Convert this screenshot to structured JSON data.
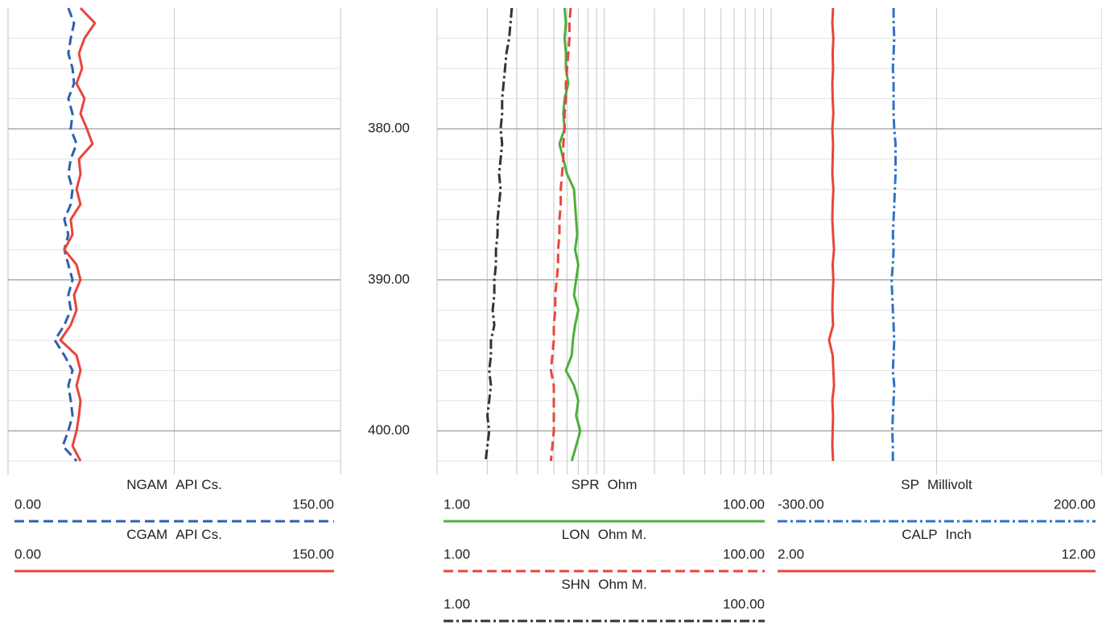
{
  "chart_data": [
    {
      "type": "line",
      "xscale": "linear",
      "xlim": [
        0,
        150
      ],
      "xgrid": [
        0,
        75,
        150
      ],
      "ylim": [
        372,
        402.9
      ],
      "inverted": true,
      "yticks": [
        {
          "value": 380,
          "label": "380.00"
        },
        {
          "value": 390,
          "label": "390.00"
        },
        {
          "value": 400,
          "label": "400.00"
        }
      ],
      "yminor": [
        374,
        376,
        378,
        382,
        384,
        386,
        388,
        392,
        394,
        396,
        398,
        402
      ],
      "y": [
        372,
        373,
        374,
        375,
        376,
        377,
        378,
        379,
        380,
        381,
        382,
        383,
        384,
        385,
        386,
        387,
        388,
        389,
        390,
        391,
        392,
        393,
        394,
        395,
        396,
        397,
        398,
        399,
        400,
        401,
        402
      ],
      "series": [
        {
          "name": "NGAM",
          "unit": "API Cs.",
          "color": "#2f5fb0",
          "style": "dashed",
          "xlim": [
            0,
            150
          ],
          "xticks": [
            {
              "value": 0,
              "label": "0.00"
            },
            {
              "value": 150,
              "label": "150.00"
            }
          ],
          "values": [
            27.2,
            29.8,
            28.3,
            27.2,
            29.1,
            29.8,
            27.2,
            29.1,
            28.3,
            30.9,
            28.3,
            27.2,
            29.1,
            28.3,
            25.4,
            27.2,
            25.4,
            27.2,
            29.1,
            27.2,
            28.3,
            25.4,
            21.1,
            25.4,
            29.1,
            27.2,
            28.3,
            29.1,
            27.2,
            24.7,
            30.9
          ]
        },
        {
          "name": "CGAM",
          "unit": "API Cs.",
          "color": "#e8453c",
          "style": "solid",
          "xlim": [
            0,
            150
          ],
          "xticks": [
            {
              "value": 0,
              "label": "0.00"
            },
            {
              "value": 150,
              "label": "150.00"
            }
          ],
          "values": [
            32.7,
            39.2,
            34.5,
            32.0,
            33.4,
            30.9,
            34.5,
            32.7,
            35.6,
            38.1,
            32.0,
            32.7,
            30.9,
            32.7,
            28.3,
            29.1,
            25.4,
            30.9,
            32.7,
            29.8,
            30.9,
            28.3,
            23.6,
            30.9,
            32.7,
            30.9,
            32.7,
            32.0,
            30.9,
            29.1,
            32.7
          ]
        }
      ]
    },
    {
      "type": "line",
      "xscale": "log",
      "xlim": [
        1,
        100
      ],
      "xgrid": [
        1,
        2,
        3,
        4,
        5,
        6,
        7,
        8,
        9,
        10,
        20,
        30,
        40,
        50,
        60,
        70,
        80,
        90,
        100
      ],
      "ylim": [
        372,
        402.9
      ],
      "inverted": true,
      "yticks": [
        {
          "value": 380,
          "label": "380.00"
        },
        {
          "value": 390,
          "label": "390.00"
        },
        {
          "value": 400,
          "label": "400.00"
        }
      ],
      "yminor": [
        374,
        376,
        378,
        382,
        384,
        386,
        388,
        392,
        394,
        396,
        398,
        402
      ],
      "y": [
        372,
        373,
        374,
        375,
        376,
        377,
        378,
        379,
        380,
        381,
        382,
        383,
        384,
        385,
        386,
        387,
        388,
        389,
        390,
        391,
        392,
        393,
        394,
        395,
        396,
        397,
        398,
        399,
        400,
        401,
        402
      ],
      "series": [
        {
          "name": "SPR",
          "unit": "Ohm",
          "color": "#4caf3c",
          "style": "solid",
          "xlim": [
            1,
            100
          ],
          "xticks": [
            {
              "value": 1,
              "label": "1.00"
            },
            {
              "value": 100,
              "label": "100.00"
            }
          ],
          "values": [
            5.8,
            5.9,
            5.8,
            5.9,
            5.9,
            6.1,
            5.8,
            5.7,
            5.8,
            5.4,
            5.7,
            6.0,
            6.6,
            6.7,
            6.8,
            6.9,
            6.7,
            7.0,
            6.8,
            6.6,
            7.0,
            6.7,
            6.5,
            6.4,
            5.9,
            6.6,
            7.0,
            6.8,
            7.2,
            6.8,
            6.4
          ]
        },
        {
          "name": "LON",
          "unit": "Ohm M.",
          "color": "#e8453c",
          "style": "dashed",
          "xlim": [
            1,
            100
          ],
          "xticks": [
            {
              "value": 1,
              "label": "1.00"
            },
            {
              "value": 100,
              "label": "100.00"
            }
          ],
          "values": [
            6.3,
            6.2,
            6.2,
            6.1,
            6.0,
            5.9,
            5.9,
            5.8,
            5.8,
            5.7,
            5.7,
            5.6,
            5.5,
            5.5,
            5.4,
            5.4,
            5.3,
            5.3,
            5.2,
            5.1,
            5.1,
            5.0,
            5.0,
            4.9,
            4.8,
            5.0,
            5.0,
            5.0,
            5.0,
            4.9,
            4.8
          ]
        },
        {
          "name": "SHN",
          "unit": "Ohm M.",
          "color": "#333333",
          "style": "dashdot",
          "xlim": [
            1,
            100
          ],
          "xticks": [
            {
              "value": 1,
              "label": "1.00"
            },
            {
              "value": 100,
              "label": "100.00"
            }
          ],
          "values": [
            2.8,
            2.75,
            2.7,
            2.6,
            2.55,
            2.5,
            2.45,
            2.45,
            2.4,
            2.45,
            2.4,
            2.35,
            2.4,
            2.35,
            2.3,
            2.3,
            2.25,
            2.25,
            2.2,
            2.2,
            2.15,
            2.2,
            2.1,
            2.1,
            2.05,
            2.1,
            2.05,
            2.0,
            2.05,
            2.0,
            1.95
          ]
        }
      ]
    },
    {
      "type": "line",
      "xscale": "linear",
      "xlim": [
        2,
        12
      ],
      "xgrid": [
        2,
        7,
        12
      ],
      "ylim": [
        372,
        402.9
      ],
      "inverted": true,
      "yticks": [
        {
          "value": 380,
          "label": "380.00"
        },
        {
          "value": 390,
          "label": "390.00"
        },
        {
          "value": 400,
          "label": "400.00"
        }
      ],
      "yminor": [
        374,
        376,
        378,
        382,
        384,
        386,
        388,
        392,
        394,
        396,
        398,
        402
      ],
      "y": [
        372,
        373,
        374,
        375,
        376,
        377,
        378,
        379,
        380,
        381,
        382,
        383,
        384,
        385,
        386,
        387,
        388,
        389,
        390,
        391,
        392,
        393,
        394,
        395,
        396,
        397,
        398,
        399,
        400,
        401,
        402
      ],
      "series": [
        {
          "name": "SP",
          "unit": "Millivolt",
          "color": "#2f72c8",
          "style": "dashdot",
          "xlim": [
            -300,
            200
          ],
          "xticks": [
            {
              "value": -300,
              "label": "-300.00"
            },
            {
              "value": 200,
              "label": "200.00"
            }
          ],
          "values": [
            -115,
            -115,
            -114,
            -115,
            -116,
            -115,
            -115,
            -115,
            -114,
            -112,
            -112,
            -112,
            -113,
            -114,
            -115,
            -116,
            -115,
            -116,
            -118,
            -117,
            -116,
            -115,
            -114,
            -115,
            -116,
            -114,
            -115,
            -116,
            -117,
            -116,
            -116
          ]
        },
        {
          "name": "CALP",
          "unit": "Inch",
          "color": "#e8453c",
          "style": "solid",
          "xlim": [
            2,
            12
          ],
          "xticks": [
            {
              "value": 2,
              "label": "2.00"
            },
            {
              "value": 12,
              "label": "12.00"
            }
          ],
          "values": [
            3.87,
            3.85,
            3.88,
            3.86,
            3.87,
            3.85,
            3.86,
            3.88,
            3.85,
            3.87,
            3.86,
            3.85,
            3.88,
            3.86,
            3.85,
            3.87,
            3.9,
            3.86,
            3.88,
            3.86,
            3.85,
            3.87,
            3.75,
            3.86,
            3.88,
            3.9,
            3.85,
            3.87,
            3.86,
            3.85,
            3.87
          ]
        }
      ]
    }
  ]
}
